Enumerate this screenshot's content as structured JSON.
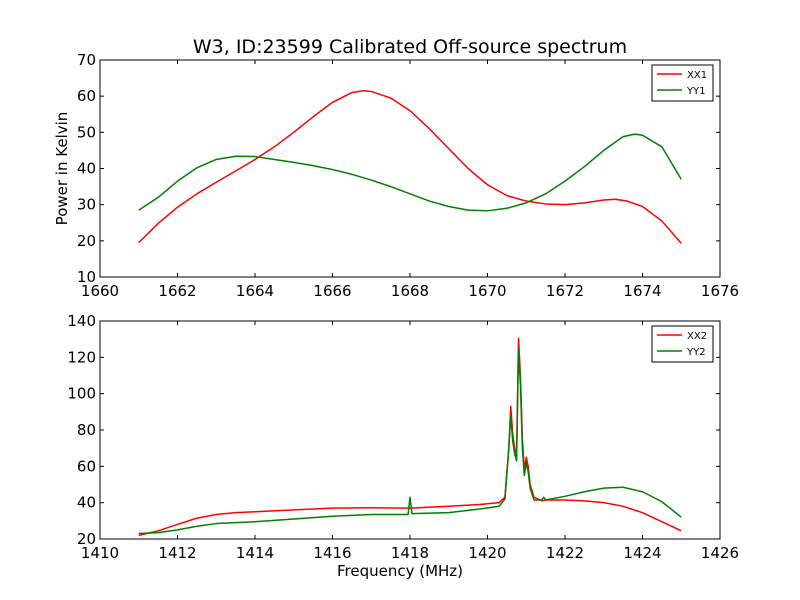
{
  "figure": {
    "title": "W3, ID:23599 Calibrated Off-source spectrum"
  },
  "chart_data": [
    {
      "type": "line",
      "title": "W3, ID:23599 Calibrated Off-source spectrum",
      "xlabel": "",
      "ylabel": "Power in Kelvin",
      "xlim": [
        1660,
        1676
      ],
      "ylim": [
        10,
        70
      ],
      "xticks": [
        1660,
        1662,
        1664,
        1666,
        1668,
        1670,
        1672,
        1674,
        1676
      ],
      "yticks": [
        10,
        20,
        30,
        40,
        50,
        60,
        70
      ],
      "grid": false,
      "legend_position": "top-right",
      "series": [
        {
          "name": "XX1",
          "color": "#ff0000",
          "points": [
            [
              1661.0,
              19.5
            ],
            [
              1661.5,
              24.8
            ],
            [
              1662.0,
              29.3
            ],
            [
              1662.5,
              33.0
            ],
            [
              1663.0,
              36.2
            ],
            [
              1663.5,
              39.3
            ],
            [
              1664.0,
              42.5
            ],
            [
              1664.5,
              46.0
            ],
            [
              1665.0,
              50.0
            ],
            [
              1665.5,
              54.3
            ],
            [
              1666.0,
              58.3
            ],
            [
              1666.5,
              61.0
            ],
            [
              1666.8,
              61.5
            ],
            [
              1667.0,
              61.3
            ],
            [
              1667.5,
              59.5
            ],
            [
              1668.0,
              56.0
            ],
            [
              1668.5,
              51.0
            ],
            [
              1669.0,
              45.5
            ],
            [
              1669.5,
              40.0
            ],
            [
              1670.0,
              35.5
            ],
            [
              1670.5,
              32.5
            ],
            [
              1671.0,
              31.0
            ],
            [
              1671.5,
              30.2
            ],
            [
              1672.0,
              30.0
            ],
            [
              1672.5,
              30.5
            ],
            [
              1673.0,
              31.3
            ],
            [
              1673.3,
              31.5
            ],
            [
              1673.6,
              31.0
            ],
            [
              1674.0,
              29.5
            ],
            [
              1674.5,
              25.5
            ],
            [
              1675.0,
              19.3
            ]
          ]
        },
        {
          "name": "YY1",
          "color": "#008000",
          "points": [
            [
              1661.0,
              28.5
            ],
            [
              1661.5,
              32.0
            ],
            [
              1662.0,
              36.5
            ],
            [
              1662.5,
              40.2
            ],
            [
              1663.0,
              42.5
            ],
            [
              1663.5,
              43.4
            ],
            [
              1664.0,
              43.3
            ],
            [
              1664.5,
              42.5
            ],
            [
              1665.0,
              41.7
            ],
            [
              1665.5,
              40.8
            ],
            [
              1666.0,
              39.7
            ],
            [
              1666.5,
              38.4
            ],
            [
              1667.0,
              36.8
            ],
            [
              1667.5,
              35.0
            ],
            [
              1668.0,
              33.0
            ],
            [
              1668.5,
              31.0
            ],
            [
              1669.0,
              29.5
            ],
            [
              1669.5,
              28.5
            ],
            [
              1670.0,
              28.3
            ],
            [
              1670.5,
              29.0
            ],
            [
              1671.0,
              30.5
            ],
            [
              1671.5,
              33.0
            ],
            [
              1672.0,
              36.5
            ],
            [
              1672.5,
              40.5
            ],
            [
              1673.0,
              45.0
            ],
            [
              1673.5,
              48.8
            ],
            [
              1673.8,
              49.5
            ],
            [
              1674.0,
              49.2
            ],
            [
              1674.5,
              46.0
            ],
            [
              1675.0,
              37.0
            ]
          ]
        }
      ]
    },
    {
      "type": "line",
      "title": "",
      "xlabel": "Frequency (MHz)",
      "ylabel": "",
      "xlim": [
        1410,
        1426
      ],
      "ylim": [
        20,
        140
      ],
      "xticks": [
        1410,
        1412,
        1414,
        1416,
        1418,
        1420,
        1422,
        1424,
        1426
      ],
      "yticks": [
        20,
        40,
        60,
        80,
        100,
        120,
        140
      ],
      "grid": false,
      "legend_position": "top-right",
      "series": [
        {
          "name": "XX2",
          "color": "#ff0000",
          "points": [
            [
              1411.0,
              22.0
            ],
            [
              1411.5,
              24.5
            ],
            [
              1412.0,
              28.0
            ],
            [
              1412.5,
              31.5
            ],
            [
              1413.0,
              33.5
            ],
            [
              1413.5,
              34.5
            ],
            [
              1414.0,
              35.0
            ],
            [
              1415.0,
              36.0
            ],
            [
              1416.0,
              37.0
            ],
            [
              1417.0,
              37.2
            ],
            [
              1418.0,
              37.0
            ],
            [
              1419.0,
              38.0
            ],
            [
              1419.8,
              39.0
            ],
            [
              1420.3,
              40.0
            ],
            [
              1420.45,
              43.0
            ],
            [
              1420.55,
              70.0
            ],
            [
              1420.6,
              93.0
            ],
            [
              1420.65,
              78.0
            ],
            [
              1420.7,
              70.0
            ],
            [
              1420.75,
              66.0
            ],
            [
              1420.8,
              130.5
            ],
            [
              1420.85,
              110.0
            ],
            [
              1420.9,
              75.0
            ],
            [
              1420.95,
              58.0
            ],
            [
              1421.0,
              65.0
            ],
            [
              1421.05,
              60.0
            ],
            [
              1421.1,
              50.0
            ],
            [
              1421.2,
              43.0
            ],
            [
              1421.4,
              41.0
            ],
            [
              1421.5,
              41.5
            ],
            [
              1422.0,
              41.5
            ],
            [
              1422.5,
              41.0
            ],
            [
              1423.0,
              40.0
            ],
            [
              1423.5,
              38.0
            ],
            [
              1424.0,
              34.5
            ],
            [
              1424.5,
              29.5
            ],
            [
              1425.0,
              24.5
            ]
          ]
        },
        {
          "name": "YY2",
          "color": "#008000",
          "points": [
            [
              1411.0,
              23.0
            ],
            [
              1411.5,
              23.5
            ],
            [
              1412.0,
              25.0
            ],
            [
              1412.5,
              27.0
            ],
            [
              1413.0,
              28.5
            ],
            [
              1414.0,
              29.5
            ],
            [
              1415.0,
              31.0
            ],
            [
              1416.0,
              32.5
            ],
            [
              1417.0,
              33.5
            ],
            [
              1417.95,
              33.5
            ],
            [
              1418.0,
              43.0
            ],
            [
              1418.05,
              34.0
            ],
            [
              1419.0,
              34.5
            ],
            [
              1419.8,
              36.5
            ],
            [
              1420.3,
              38.0
            ],
            [
              1420.45,
              42.0
            ],
            [
              1420.55,
              70.0
            ],
            [
              1420.6,
              88.0
            ],
            [
              1420.65,
              74.0
            ],
            [
              1420.7,
              67.0
            ],
            [
              1420.75,
              63.0
            ],
            [
              1420.8,
              124.0
            ],
            [
              1420.85,
              105.0
            ],
            [
              1420.9,
              70.0
            ],
            [
              1420.95,
              55.0
            ],
            [
              1421.0,
              62.0
            ],
            [
              1421.05,
              57.0
            ],
            [
              1421.1,
              48.0
            ],
            [
              1421.2,
              41.5
            ],
            [
              1421.4,
              41.5
            ],
            [
              1421.45,
              43.0
            ],
            [
              1421.5,
              41.5
            ],
            [
              1422.0,
              43.5
            ],
            [
              1422.5,
              46.0
            ],
            [
              1423.0,
              48.0
            ],
            [
              1423.5,
              48.5
            ],
            [
              1424.0,
              46.0
            ],
            [
              1424.5,
              40.5
            ],
            [
              1425.0,
              32.0
            ]
          ]
        }
      ]
    }
  ]
}
